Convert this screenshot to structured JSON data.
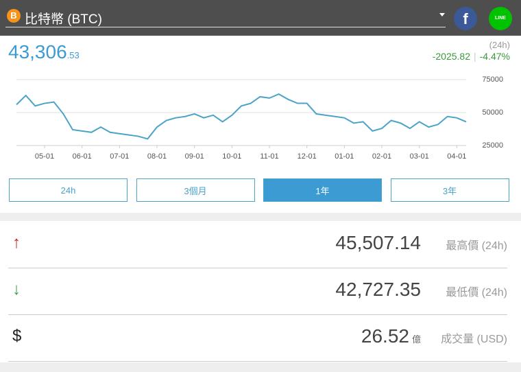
{
  "header": {
    "coin_icon": "B",
    "title": "比特幣 (BTC)",
    "facebook": "f",
    "line": "LINE"
  },
  "price": {
    "main": "43,306",
    "decimal": ".53",
    "period": "(24h)",
    "change": "-2025.82",
    "change_pct": "-4.47%"
  },
  "chart_data": {
    "type": "line",
    "categories": [
      null,
      null,
      null,
      "05-01",
      null,
      null,
      null,
      "06-01",
      null,
      null,
      null,
      "07-01",
      null,
      null,
      null,
      "08-01",
      null,
      null,
      null,
      "09-01",
      null,
      null,
      null,
      "10-01",
      null,
      null,
      null,
      "11-01",
      null,
      null,
      null,
      "12-01",
      null,
      null,
      null,
      "01-01",
      null,
      null,
      null,
      "02-01",
      null,
      null,
      null,
      "03-01",
      null,
      null,
      null,
      "04-01",
      null
    ],
    "series": [
      {
        "color": "#4aa3c8",
        "values": [
          56000,
          63000,
          55000,
          57000,
          58000,
          49000,
          37000,
          36000,
          35000,
          39000,
          35000,
          34000,
          33000,
          32000,
          30000,
          39000,
          44000,
          46000,
          47000,
          49000,
          46000,
          48000,
          43000,
          48000,
          55000,
          57000,
          62000,
          61000,
          64000,
          60000,
          57000,
          57000,
          49000,
          48000,
          47000,
          46000,
          42000,
          43000,
          36000,
          38000,
          44000,
          42000,
          38000,
          43000,
          39000,
          41000,
          47000,
          46000,
          43000
        ]
      }
    ],
    "ylim": [
      25000,
      75000
    ],
    "yticks": [
      25000,
      50000,
      75000
    ],
    "grid": true
  },
  "ranges": [
    {
      "label": "24h",
      "active": false
    },
    {
      "label": "3個月",
      "active": false
    },
    {
      "label": "1年",
      "active": true
    },
    {
      "label": "3年",
      "active": false
    }
  ],
  "stats": [
    {
      "icon": "↑",
      "value": "45,507.14",
      "label": "最高價 (24h)"
    },
    {
      "icon": "↓",
      "value": "42,727.35",
      "label": "最低價 (24h)"
    },
    {
      "icon": "$",
      "value": "26.52",
      "unit": "億",
      "label": "成交量 (USD)"
    }
  ]
}
